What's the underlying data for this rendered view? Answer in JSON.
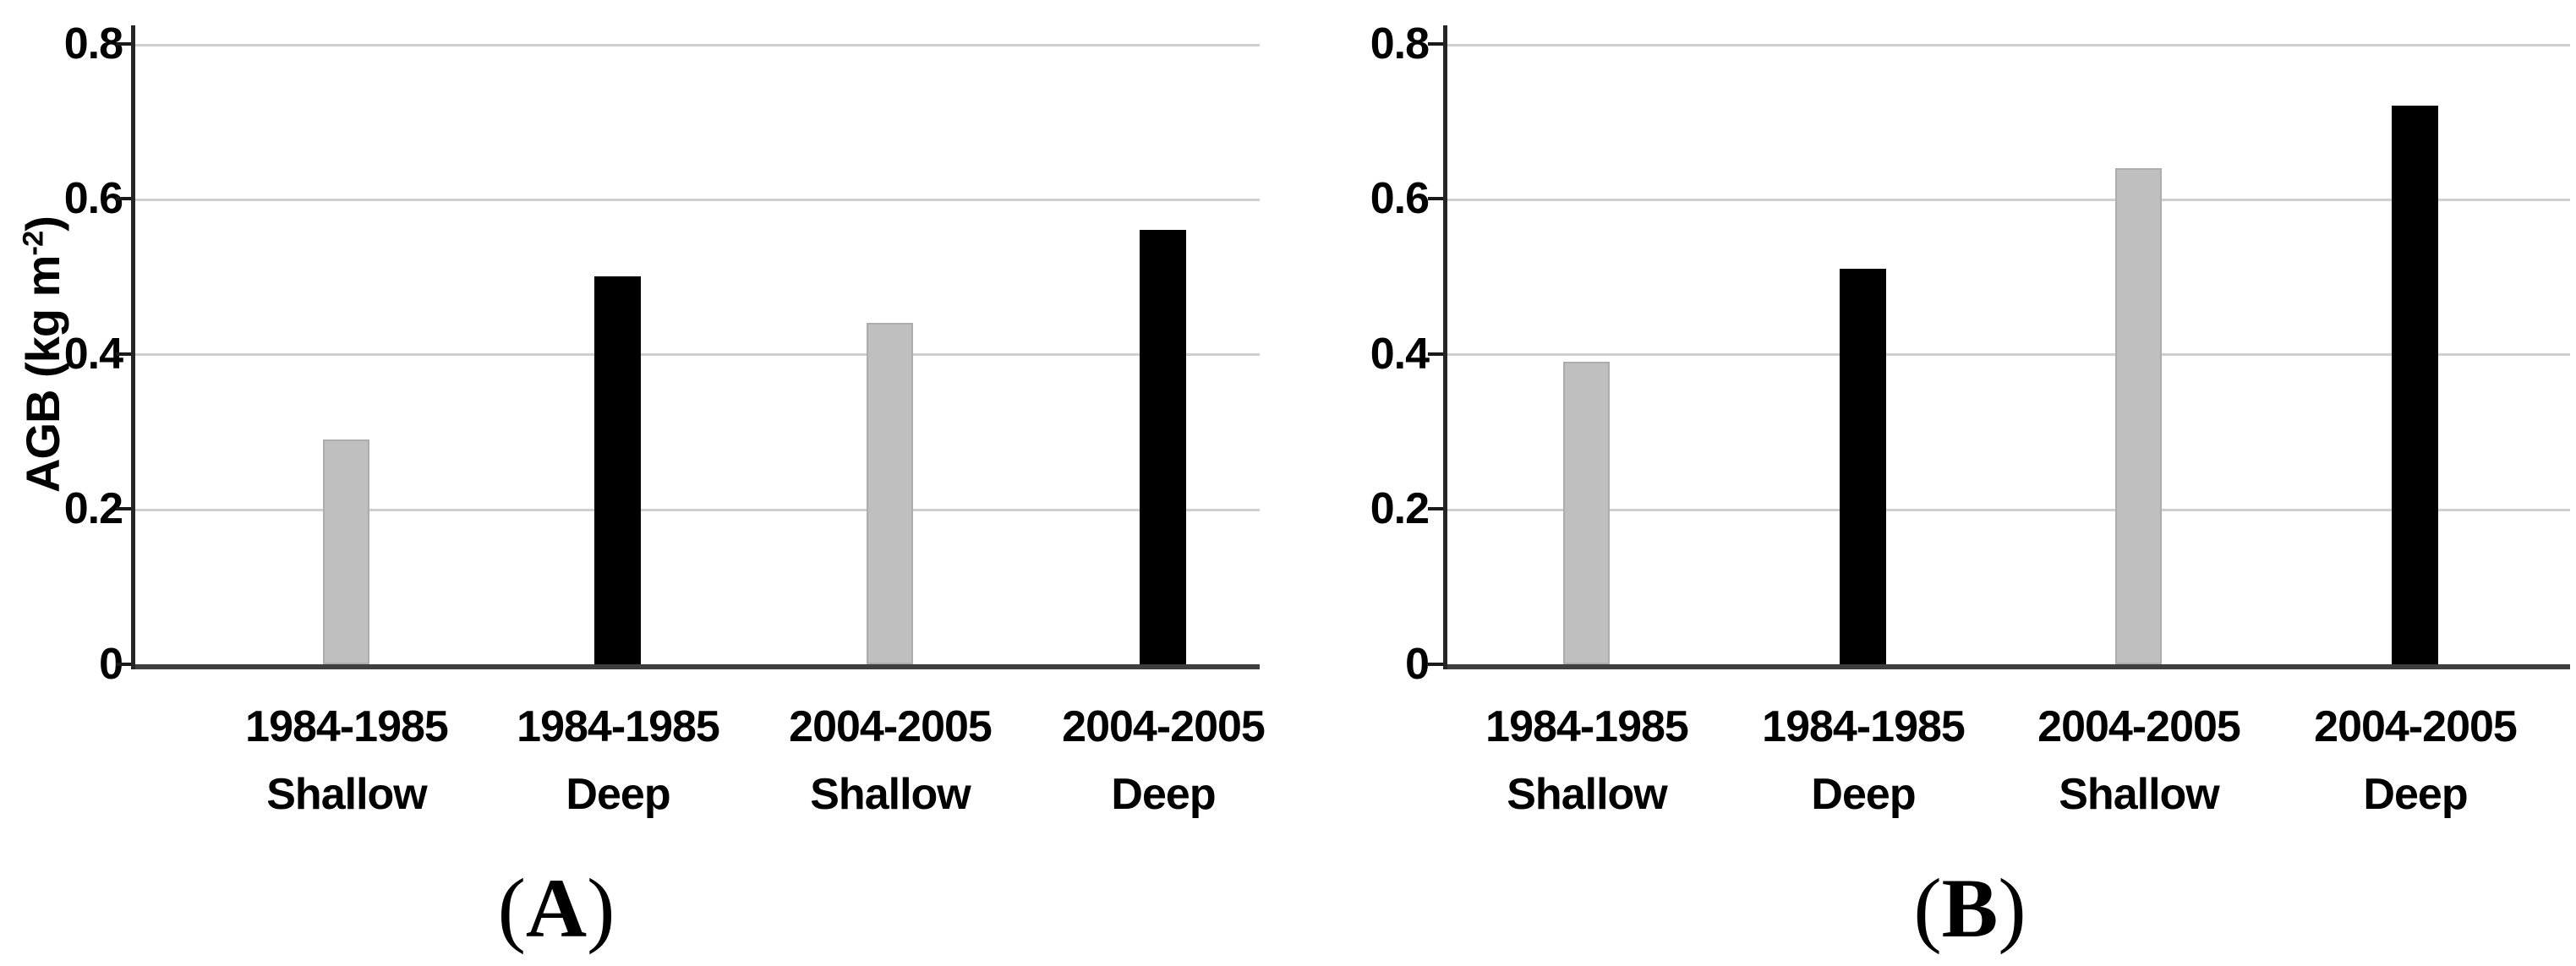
{
  "punctuation": {
    "open": "(",
    "close": ")"
  },
  "colors": {
    "bar_shallow": "#bfbfbf",
    "bar_deep": "#000000",
    "gridline": "#cfcfcf",
    "axis": "#3f3f3f",
    "text": "#000000",
    "background": "#ffffff"
  },
  "chart_data": [
    {
      "type": "bar",
      "panel_label": "A",
      "ylabel_prefix": "AGB (kg m",
      "ylabel_sup": "-2",
      "ylabel_suffix": ")",
      "ylim": [
        0,
        0.8
      ],
      "ytick_labels": [
        "0.8",
        "0.6",
        "0.4",
        "0.2",
        "0"
      ],
      "grid": true,
      "legend": "none",
      "categories": [
        {
          "line1": "1984-1985",
          "line2": "Shallow"
        },
        {
          "line1": "1984-1985",
          "line2": "Deep"
        },
        {
          "line1": "2004-2005",
          "line2": "Shallow"
        },
        {
          "line1": "2004-2005",
          "line2": "Deep"
        }
      ],
      "values": [
        0.29,
        0.5,
        0.44,
        0.56
      ],
      "bar_colors": [
        "#bfbfbf",
        "#000000",
        "#bfbfbf",
        "#000000"
      ]
    },
    {
      "type": "bar",
      "panel_label": "B",
      "ylabel_prefix": "",
      "ylabel_sup": "",
      "ylabel_suffix": "",
      "ylim": [
        0,
        0.8
      ],
      "ytick_labels": [
        "0.8",
        "0.6",
        "0.4",
        "0.2",
        "0"
      ],
      "grid": true,
      "legend": "none",
      "categories": [
        {
          "line1": "1984-1985",
          "line2": "Shallow"
        },
        {
          "line1": "1984-1985",
          "line2": "Deep"
        },
        {
          "line1": "2004-2005",
          "line2": "Shallow"
        },
        {
          "line1": "2004-2005",
          "line2": "Deep"
        }
      ],
      "values": [
        0.39,
        0.51,
        0.64,
        0.72
      ],
      "bar_colors": [
        "#bfbfbf",
        "#000000",
        "#bfbfbf",
        "#000000"
      ]
    }
  ]
}
